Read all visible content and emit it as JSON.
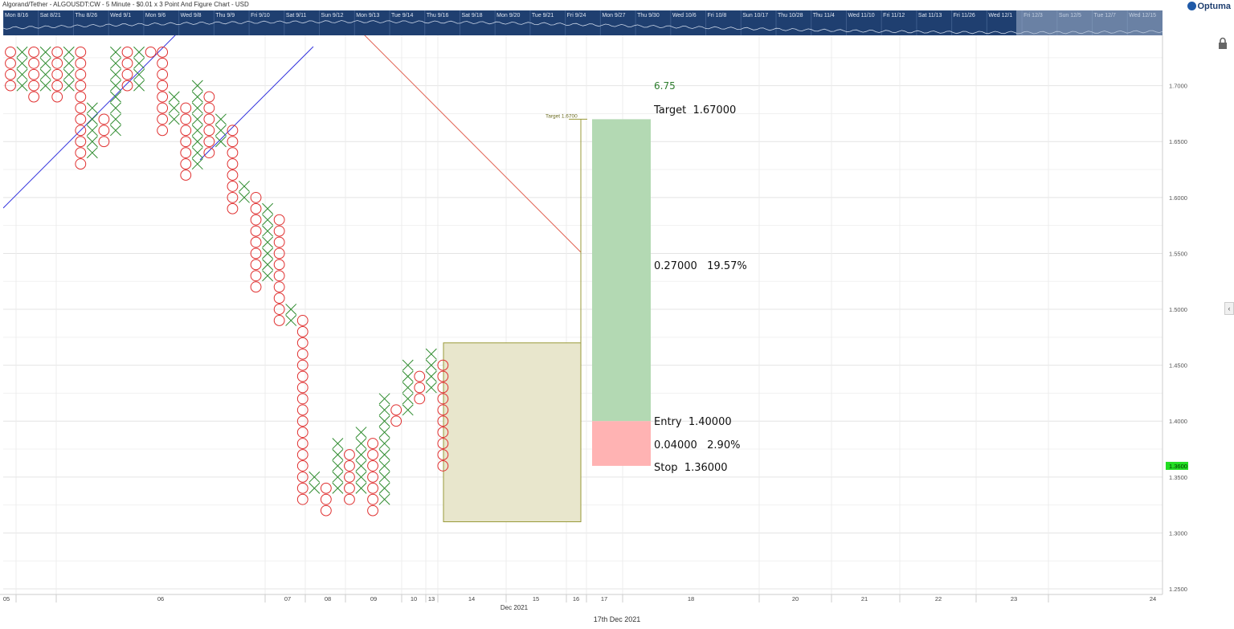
{
  "title": "Algorand/Tether - ALGOUSDT:CW - 5 Minute - $0.01 x 3 Point And Figure Chart - USD",
  "logo": "Optuma",
  "footer_date": "17th Dec 2021",
  "month_label": "Dec 2021",
  "nav_dates": [
    "Mon 8/16",
    "Sat 8/21",
    "Thu 8/26",
    "Wed 9/1",
    "Mon 9/6",
    "Wed 9/8",
    "Thu 9/9",
    "Fri 9/10",
    "Sat 9/11",
    "Sun 9/12",
    "Mon 9/13",
    "Tue 9/14",
    "Thu 9/16",
    "Sat 9/18",
    "Mon 9/20",
    "Tue 9/21",
    "Fri 9/24",
    "Mon 9/27",
    "Thu 9/30",
    "Wed 10/6",
    "Fri 10/8",
    "Sun 10/17",
    "Thu 10/28",
    "Thu 11/4",
    "Wed 11/10",
    "Fri 11/12",
    "Sat 11/13",
    "Fri 11/26",
    "Wed 12/1",
    "Fri 12/3",
    "Sun 12/5",
    "Tue 12/7",
    "Wed 12/15"
  ],
  "colors": {
    "nav_bg": "#1f3f70",
    "x_mark": "#2e8b2e",
    "o_mark": "#e03030",
    "target_zone": "#b3d9b3",
    "stop_zone": "#ffb3b3",
    "box_fill": "#e8e6cc",
    "box_stroke": "#9a9a3a",
    "price_badge": "#22dd22",
    "blue_line": "#3333dd",
    "red_line": "#e06050"
  },
  "chart_data": {
    "type": "point-and-figure",
    "title": "Algorand/Tether - ALGOUSDT:CW - 5 Minute - $0.01 x 3 Point And Figure Chart - USD",
    "box_size": 0.01,
    "reversal": 3,
    "ylim": [
      1.245,
      1.745
    ],
    "y_ticks": [
      "1.2500",
      "1.3000",
      "1.3500",
      "1.4000",
      "1.4500",
      "1.5000",
      "1.5500",
      "1.6000",
      "1.6500",
      "1.7000"
    ],
    "x_labels": [
      "05",
      "06",
      "07",
      "08",
      "09",
      "10",
      "13",
      "14",
      "15",
      "16",
      "17",
      "18",
      "20",
      "21",
      "22",
      "23",
      "24"
    ],
    "current_price": "1.3600",
    "columns": [
      {
        "type": "O",
        "high": 1.73,
        "low": 1.7
      },
      {
        "type": "X",
        "high": 1.73,
        "low": 1.7
      },
      {
        "type": "O",
        "high": 1.73,
        "low": 1.69
      },
      {
        "type": "X",
        "high": 1.73,
        "low": 1.7
      },
      {
        "type": "O",
        "high": 1.73,
        "low": 1.69
      },
      {
        "type": "X",
        "high": 1.73,
        "low": 1.7
      },
      {
        "type": "O",
        "high": 1.73,
        "low": 1.63
      },
      {
        "type": "X",
        "high": 1.68,
        "low": 1.64
      },
      {
        "type": "O",
        "high": 1.67,
        "low": 1.65
      },
      {
        "type": "X",
        "high": 1.73,
        "low": 1.66
      },
      {
        "type": "O",
        "high": 1.73,
        "low": 1.7
      },
      {
        "type": "X",
        "high": 1.73,
        "low": 1.7
      },
      {
        "type": "O",
        "high": 1.73,
        "low": 1.73
      },
      {
        "type": "O",
        "high": 1.73,
        "low": 1.66
      },
      {
        "type": "X",
        "high": 1.69,
        "low": 1.67
      },
      {
        "type": "O",
        "high": 1.68,
        "low": 1.62
      },
      {
        "type": "X",
        "high": 1.7,
        "low": 1.63
      },
      {
        "type": "O",
        "high": 1.69,
        "low": 1.64
      },
      {
        "type": "X",
        "high": 1.67,
        "low": 1.65
      },
      {
        "type": "O",
        "high": 1.66,
        "low": 1.59
      },
      {
        "type": "X",
        "high": 1.61,
        "low": 1.6
      },
      {
        "type": "O",
        "high": 1.6,
        "low": 1.52
      },
      {
        "type": "X",
        "high": 1.59,
        "low": 1.53
      },
      {
        "type": "O",
        "high": 1.58,
        "low": 1.49
      },
      {
        "type": "X",
        "high": 1.5,
        "low": 1.49
      },
      {
        "type": "O",
        "high": 1.49,
        "low": 1.33
      },
      {
        "type": "X",
        "high": 1.35,
        "low": 1.34
      },
      {
        "type": "O",
        "high": 1.34,
        "low": 1.32
      },
      {
        "type": "X",
        "high": 1.38,
        "low": 1.34
      },
      {
        "type": "O",
        "high": 1.37,
        "low": 1.33
      },
      {
        "type": "X",
        "high": 1.39,
        "low": 1.34
      },
      {
        "type": "O",
        "high": 1.38,
        "low": 1.32
      },
      {
        "type": "X",
        "high": 1.42,
        "low": 1.33
      },
      {
        "type": "O",
        "high": 1.41,
        "low": 1.4
      },
      {
        "type": "X",
        "high": 1.45,
        "low": 1.41
      },
      {
        "type": "O",
        "high": 1.44,
        "low": 1.42
      },
      {
        "type": "X",
        "high": 1.46,
        "low": 1.43
      },
      {
        "type": "O",
        "high": 1.45,
        "low": 1.36
      }
    ],
    "trade": {
      "ratio": "6.75",
      "target_label": "Target  1.67000",
      "target_mini_label": "Target 1.6700",
      "target_price": 1.67,
      "reward_label": "0.27000   19.57%",
      "entry_label": "Entry  1.40000",
      "entry_price": 1.4,
      "risk_label": "0.04000   2.90%",
      "stop_label": "Stop  1.36000",
      "stop_price": 1.36
    },
    "count_box": {
      "top": 1.47,
      "bottom": 1.31
    }
  }
}
